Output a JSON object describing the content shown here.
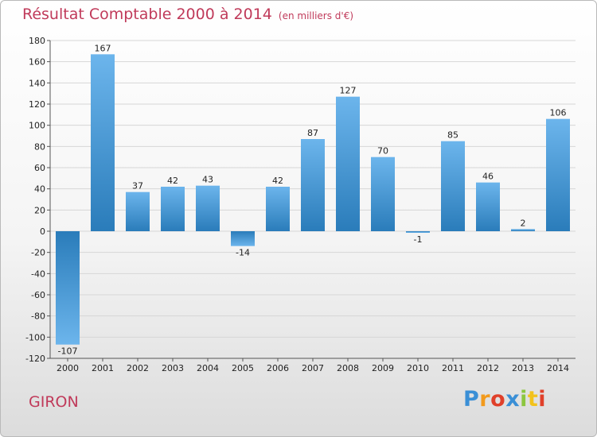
{
  "header": {
    "title": "Résultat Comptable 2000 à 2014",
    "unit": "(en milliers d'€)"
  },
  "footer": {
    "city": "GIRON",
    "logo": "Proxiti"
  },
  "colors": {
    "title": "#c03a5a",
    "bar_light": "#6cb5ec",
    "bar_dark": "#2a7cba",
    "grid": "#d6d6d6"
  },
  "chart_data": {
    "type": "bar",
    "title": "Résultat Comptable 2000 à 2014",
    "subtitle": "(en milliers d'€)",
    "xlabel": "",
    "ylabel": "",
    "ylim": [
      -120,
      180
    ],
    "ytick_step": 20,
    "grid": true,
    "categories": [
      "2000",
      "2001",
      "2002",
      "2003",
      "2004",
      "2005",
      "2006",
      "2007",
      "2008",
      "2009",
      "2010",
      "2011",
      "2012",
      "2013",
      "2014"
    ],
    "values": [
      -107,
      167,
      37,
      42,
      43,
      -14,
      42,
      87,
      127,
      70,
      -1,
      85,
      46,
      2,
      106
    ],
    "labels": [
      "-107",
      "167",
      "37",
      "42",
      "43",
      "-14",
      "42",
      "87",
      "127",
      "70",
      "-1",
      "85",
      "46",
      "2",
      "106"
    ]
  }
}
